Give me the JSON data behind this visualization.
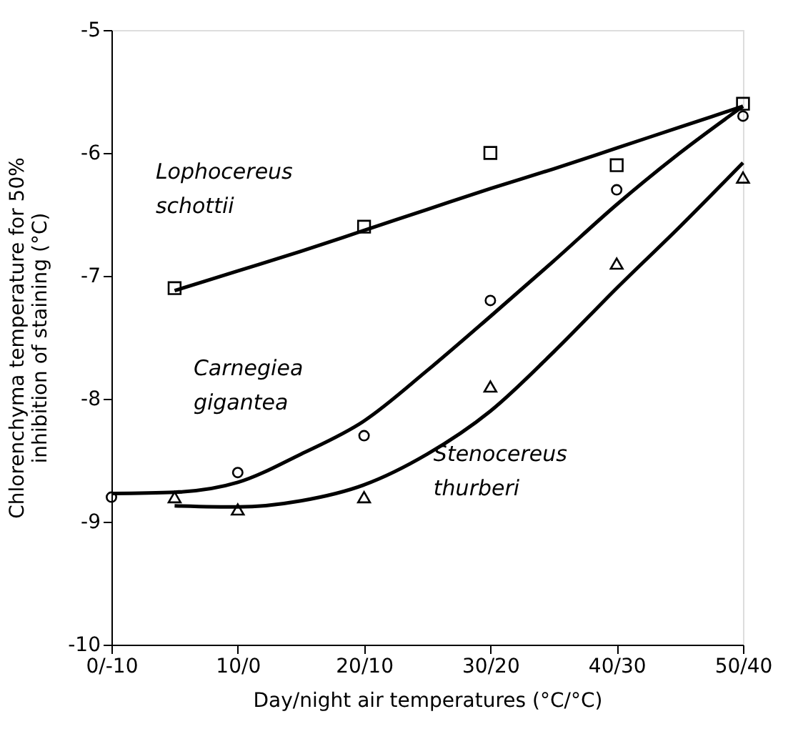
{
  "chart_data": {
    "type": "scatter",
    "xlabel": "Day/night air temperatures (°C/°C)",
    "ylabel": "Chlorenchyma temperature for 50% inhibition of staining (°C)",
    "categories": [
      "0/-10",
      null,
      "10/0",
      null,
      "20/10",
      null,
      "30/20",
      null,
      "40/30",
      null,
      "50/40"
    ],
    "ylim": [
      -10,
      -5
    ],
    "yticks": [
      -10,
      -9,
      -8,
      -7,
      -6,
      -5
    ],
    "grid": false,
    "series": [
      {
        "marker": "square",
        "color": "#000000",
        "values": [
          null,
          -7.1,
          null,
          null,
          -6.6,
          null,
          -6.0,
          null,
          -6.1,
          null,
          -5.6
        ]
      },
      {
        "marker": "circle",
        "color": "#000000",
        "values": [
          -8.8,
          null,
          -8.6,
          null,
          -8.3,
          null,
          -7.2,
          null,
          -6.3,
          null,
          -5.7
        ]
      },
      {
        "marker": "triangle",
        "color": "#000000",
        "values": [
          null,
          -8.8,
          -8.9,
          null,
          -8.8,
          null,
          -7.9,
          null,
          -6.9,
          null,
          -6.2
        ]
      },
      {
        "type": "line",
        "line_style": "solid",
        "color": "#000000",
        "values": [
          null,
          -7.12,
          -6.96,
          -6.8,
          -6.63,
          -6.46,
          -6.29,
          -6.13,
          -5.96,
          -5.79,
          -5.62
        ]
      },
      {
        "type": "line",
        "line_style": "solid",
        "color": "#000000",
        "values": [
          -8.77,
          -8.76,
          -8.68,
          -8.45,
          -8.18,
          -7.77,
          -7.33,
          -6.88,
          -6.42,
          -6.0,
          -5.62
        ]
      },
      {
        "type": "line",
        "line_style": "solid",
        "color": "#000000",
        "values": [
          null,
          -8.87,
          -8.88,
          -8.83,
          -8.7,
          -8.45,
          -8.1,
          -7.62,
          -7.1,
          -6.6,
          -6.08
        ]
      }
    ],
    "annotations": [
      "Lophocereus schottii",
      "Carnegiea gigantea",
      "Stenocereus thurberi"
    ]
  }
}
